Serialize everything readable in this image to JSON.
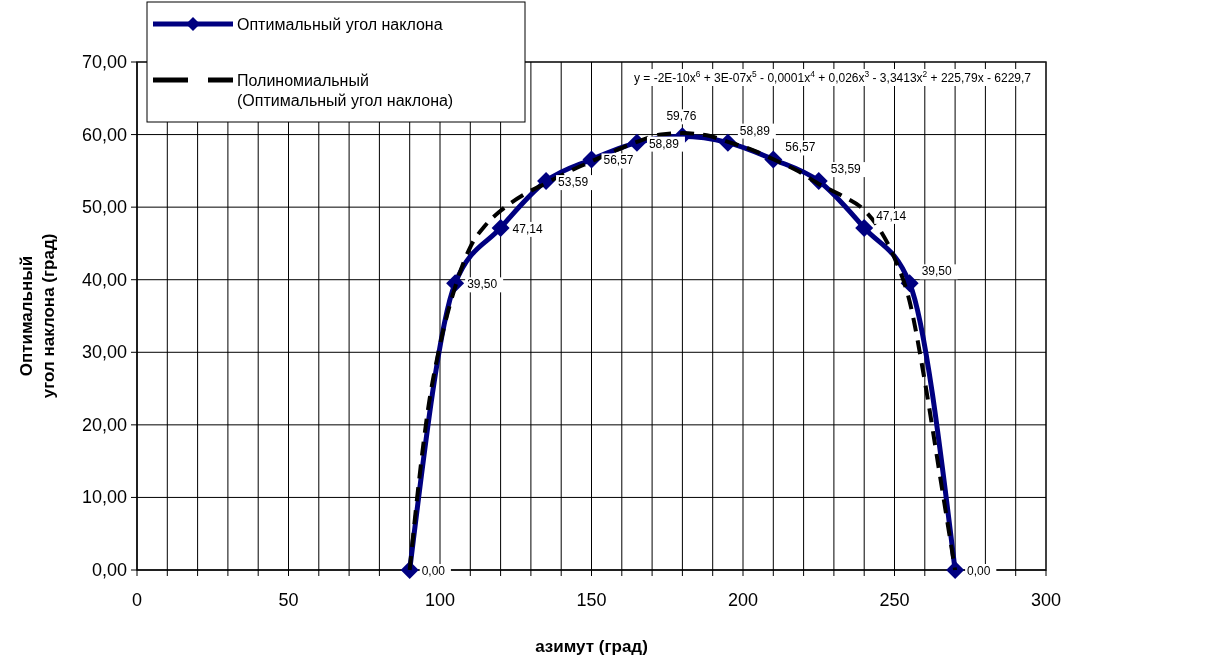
{
  "chart_data": {
    "type": "line",
    "xlabel": "азимут (град)",
    "ylabel": "Оптимальный\nугол наклона (град)",
    "xlim": [
      0,
      300
    ],
    "xticks": [
      0,
      {
        "value": 10,
        "label": null
      },
      {
        "value": 20,
        "label": null
      },
      {
        "value": 30,
        "label": null
      },
      {
        "value": 40,
        "label": null
      },
      50,
      {
        "value": 60,
        "label": null
      },
      {
        "value": 70,
        "label": null
      },
      {
        "value": 80,
        "label": null
      },
      {
        "value": 90,
        "label": null
      },
      100,
      {
        "value": 110,
        "label": null
      },
      {
        "value": 120,
        "label": null
      },
      {
        "value": 130,
        "label": null
      },
      {
        "value": 140,
        "label": null
      },
      150,
      {
        "value": 160,
        "label": null
      },
      {
        "value": 170,
        "label": null
      },
      {
        "value": 180,
        "label": null
      },
      {
        "value": 190,
        "label": null
      },
      200,
      {
        "value": 210,
        "label": null
      },
      {
        "value": 220,
        "label": null
      },
      {
        "value": 230,
        "label": null
      },
      {
        "value": 240,
        "label": null
      },
      250,
      {
        "value": 260,
        "label": null
      },
      {
        "value": 270,
        "label": null
      },
      {
        "value": 280,
        "label": null
      },
      {
        "value": 290,
        "label": null
      },
      300
    ],
    "ylim": [
      0,
      70
    ],
    "yticks": [
      {
        "value": 0,
        "label": "0,00"
      },
      {
        "value": 10,
        "label": "10,00"
      },
      {
        "value": 20,
        "label": "20,00"
      },
      {
        "value": 30,
        "label": "30,00"
      },
      {
        "value": 40,
        "label": "40,00"
      },
      {
        "value": 50,
        "label": "50,00"
      },
      {
        "value": 60,
        "label": "60,00"
      },
      {
        "value": 70,
        "label": "70,00"
      }
    ],
    "grid": true,
    "legend": "top left",
    "marker": "diamond",
    "annotations": [
      "y = -2E-10x$^{6}$ + 3E-07x$^{5}$ - 0,0001x$^{4}$ + 0,026x$^{3}$ - 3,3413x$^{2}$ + 225,79x - 6229,7"
    ],
    "series": [
      {
        "name": "Оптимальный угол наклона",
        "color": "#000080",
        "x": [
          90,
          105,
          120,
          135,
          150,
          165,
          180,
          195,
          210,
          225,
          240,
          255,
          270
        ],
        "values": [
          0,
          39.5,
          47.14,
          53.59,
          56.57,
          58.89,
          59.76,
          58.89,
          56.57,
          53.59,
          47.14,
          39.5,
          0
        ],
        "value_labels": [
          "0,00",
          "39,50",
          "47,14",
          "53,59",
          "56,57",
          "58,89",
          "59,76",
          "58,89",
          "56,57",
          "53,59",
          "47,14",
          "39,50",
          "0,00"
        ]
      },
      {
        "name": "Полиномиальный (Оптимальный угол наклона)",
        "color": "#000000",
        "line_style": "dashed",
        "marker": "none",
        "x": [
          90,
          93,
          96,
          100,
          105,
          110,
          115,
          120,
          128,
          135,
          143,
          150,
          158,
          165,
          173,
          180,
          188,
          195,
          203,
          210,
          218,
          225,
          233,
          240,
          245,
          250,
          255,
          260,
          265,
          270
        ],
        "values": [
          0,
          12,
          22,
          31,
          39,
          44.5,
          47.5,
          49.5,
          51.8,
          53.3,
          55,
          56.3,
          57.8,
          59,
          60,
          60.2,
          59.9,
          59,
          57.9,
          56.6,
          55,
          53.2,
          51.5,
          49.6,
          47,
          43,
          37,
          26,
          13,
          0
        ]
      }
    ]
  }
}
